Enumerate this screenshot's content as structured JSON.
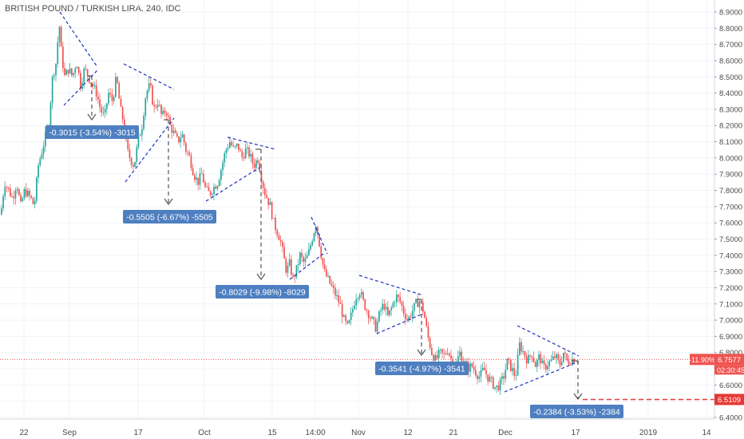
{
  "header": {
    "title": "BRITISH POUND / TURKISH LIRA, 240, IDC"
  },
  "chart_data": {
    "type": "candlestick",
    "title": "BRITISH POUND / TURKISH LIRA, 240, IDC",
    "y_ticks": [
      "8.9000",
      "8.8000",
      "8.7000",
      "8.6000",
      "8.5000",
      "8.4000",
      "8.3000",
      "8.2000",
      "8.1000",
      "8.0000",
      "7.9000",
      "7.8000",
      "7.7000",
      "7.6000",
      "7.5000",
      "7.4000",
      "7.3000",
      "7.2000",
      "7.1000",
      "7.0000",
      "6.9000",
      "6.8000",
      "6.7000",
      "6.6000",
      "6.5000",
      "6.4000"
    ],
    "x_ticks": [
      "22",
      "Sep",
      "17",
      "Oct",
      "15",
      "14:00",
      "Nov",
      "12",
      "21",
      "Dec",
      "17",
      "2019",
      "14"
    ],
    "ylim": [
      6.35,
      8.95
    ],
    "price_path": [
      [
        0,
        7.65
      ],
      [
        5,
        7.85
      ],
      [
        10,
        7.8
      ],
      [
        15,
        7.75
      ],
      [
        20,
        7.85
      ],
      [
        25,
        7.7
      ],
      [
        30,
        7.8
      ],
      [
        38,
        7.75
      ],
      [
        42,
        7.7
      ],
      [
        47,
        7.95
      ],
      [
        52,
        8.05
      ],
      [
        57,
        8.15
      ],
      [
        60,
        8.2
      ],
      [
        65,
        8.5
      ],
      [
        70,
        8.6
      ],
      [
        73,
        8.85
      ],
      [
        76,
        8.65
      ],
      [
        80,
        8.5
      ],
      [
        85,
        8.55
      ],
      [
        90,
        8.5
      ],
      [
        95,
        8.6
      ],
      [
        100,
        8.45
      ],
      [
        105,
        8.55
      ],
      [
        110,
        8.5
      ],
      [
        115,
        8.45
      ],
      [
        120,
        8.4
      ],
      [
        125,
        8.3
      ],
      [
        130,
        8.25
      ],
      [
        135,
        8.4
      ],
      [
        140,
        8.35
      ],
      [
        145,
        8.5
      ],
      [
        150,
        8.3
      ],
      [
        155,
        8.2
      ],
      [
        158,
        8.05
      ],
      [
        162,
        8.0
      ],
      [
        167,
        7.95
      ],
      [
        172,
        8.1
      ],
      [
        177,
        8.2
      ],
      [
        182,
        8.4
      ],
      [
        187,
        8.45
      ],
      [
        192,
        8.3
      ],
      [
        197,
        8.35
      ],
      [
        202,
        8.25
      ],
      [
        207,
        8.3
      ],
      [
        212,
        8.2
      ],
      [
        217,
        8.15
      ],
      [
        222,
        8.1
      ],
      [
        227,
        8.15
      ],
      [
        232,
        8.05
      ],
      [
        237,
        8.0
      ],
      [
        242,
        7.9
      ],
      [
        247,
        7.85
      ],
      [
        252,
        7.9
      ],
      [
        257,
        7.8
      ],
      [
        262,
        7.78
      ],
      [
        267,
        7.82
      ],
      [
        272,
        7.85
      ],
      [
        277,
        7.95
      ],
      [
        282,
        8.05
      ],
      [
        287,
        8.1
      ],
      [
        292,
        8.05
      ],
      [
        297,
        8.08
      ],
      [
        302,
        8.0
      ],
      [
        307,
        8.05
      ],
      [
        312,
        8.02
      ],
      [
        317,
        7.95
      ],
      [
        322,
        8.0
      ],
      [
        326,
        7.9
      ],
      [
        330,
        7.8
      ],
      [
        334,
        7.75
      ],
      [
        338,
        7.7
      ],
      [
        342,
        7.6
      ],
      [
        346,
        7.55
      ],
      [
        350,
        7.5
      ],
      [
        354,
        7.4
      ],
      [
        358,
        7.3
      ],
      [
        362,
        7.35
      ],
      [
        366,
        7.25
      ],
      [
        370,
        7.3
      ],
      [
        375,
        7.4
      ],
      [
        380,
        7.35
      ],
      [
        385,
        7.4
      ],
      [
        390,
        7.5
      ],
      [
        395,
        7.6
      ],
      [
        400,
        7.45
      ],
      [
        405,
        7.3
      ],
      [
        410,
        7.25
      ],
      [
        415,
        7.2
      ],
      [
        420,
        7.15
      ],
      [
        425,
        7.1
      ],
      [
        430,
        7.0
      ],
      [
        435,
        6.95
      ],
      [
        440,
        7.05
      ],
      [
        445,
        7.15
      ],
      [
        450,
        7.18
      ],
      [
        455,
        7.1
      ],
      [
        460,
        7.05
      ],
      [
        465,
        7.0
      ],
      [
        470,
        6.95
      ],
      [
        475,
        7.05
      ],
      [
        480,
        7.1
      ],
      [
        485,
        7.02
      ],
      [
        490,
        7.08
      ],
      [
        495,
        7.15
      ],
      [
        500,
        7.12
      ],
      [
        505,
        7.05
      ],
      [
        510,
        7.0
      ],
      [
        515,
        7.05
      ],
      [
        520,
        7.1
      ],
      [
        525,
        7.12
      ],
      [
        530,
        7.05
      ],
      [
        535,
        6.9
      ],
      [
        540,
        6.8
      ],
      [
        545,
        6.75
      ],
      [
        550,
        6.8
      ],
      [
        555,
        6.78
      ],
      [
        560,
        6.82
      ],
      [
        565,
        6.75
      ],
      [
        570,
        6.72
      ],
      [
        575,
        6.8
      ],
      [
        580,
        6.75
      ],
      [
        585,
        6.7
      ],
      [
        590,
        6.72
      ],
      [
        595,
        6.68
      ],
      [
        600,
        6.65
      ],
      [
        605,
        6.7
      ],
      [
        610,
        6.65
      ],
      [
        615,
        6.62
      ],
      [
        620,
        6.58
      ],
      [
        625,
        6.6
      ],
      [
        630,
        6.65
      ],
      [
        635,
        6.75
      ],
      [
        640,
        6.7
      ],
      [
        645,
        6.65
      ],
      [
        650,
        6.85
      ],
      [
        655,
        6.8
      ],
      [
        660,
        6.75
      ],
      [
        665,
        6.8
      ],
      [
        670,
        6.72
      ],
      [
        675,
        6.78
      ],
      [
        680,
        6.7
      ],
      [
        685,
        6.73
      ],
      [
        690,
        6.75
      ],
      [
        695,
        6.78
      ],
      [
        700,
        6.72
      ],
      [
        705,
        6.8
      ],
      [
        710,
        6.74
      ],
      [
        715,
        6.76
      ],
      [
        720,
        6.7577
      ]
    ],
    "annotations": [
      {
        "label": "-0.3015 (-3.54%) -3015"
      },
      {
        "label": "-0.5505 (-6.67%) -5505"
      },
      {
        "label": "-0.8029 (-9.98%) -8029"
      },
      {
        "label": "-0.3541 (-4.97%) -3541"
      },
      {
        "label": "-0.2384 (-3.53%) -2384"
      }
    ],
    "price_badges": {
      "current_change": "-11.90%",
      "current_price": "6.7577",
      "countdown": "02:30:45",
      "target_price": "6.5109",
      "current_value": 6.7577,
      "target_value": 6.5109
    },
    "colors": {
      "up": "#26a69a",
      "down": "#ef5350",
      "pattern": "#1e2fc4",
      "label_bg": "#4e7fc0",
      "target_line": "#e53935",
      "current_line": "#ef5350"
    }
  }
}
